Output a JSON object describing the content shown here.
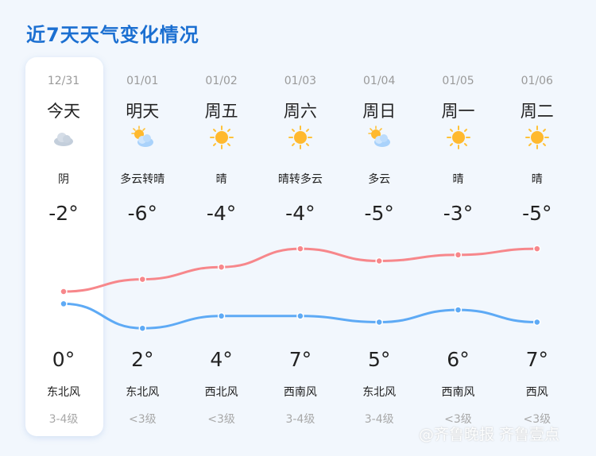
{
  "title": "近7天天气变化情况",
  "colors": {
    "high_line": "#f7878b",
    "low_line": "#5eaaf5",
    "title": "#1b6fd1"
  },
  "days": [
    {
      "date": "12/31",
      "day": "今天",
      "icon": "overcast-icon",
      "cond": "阴",
      "low": "-2°",
      "high": "0°",
      "wind": "东北风",
      "level": "3-4级",
      "low_v": -2,
      "high_v": 0
    },
    {
      "date": "01/01",
      "day": "明天",
      "icon": "partly-cloudy-icon",
      "cond": "多云转晴",
      "low": "-6°",
      "high": "2°",
      "wind": "东北风",
      "level": "<3级",
      "low_v": -6,
      "high_v": 2
    },
    {
      "date": "01/02",
      "day": "周五",
      "icon": "sunny-icon",
      "cond": "晴",
      "low": "-4°",
      "high": "4°",
      "wind": "西北风",
      "level": "<3级",
      "low_v": -4,
      "high_v": 4
    },
    {
      "date": "01/03",
      "day": "周六",
      "icon": "sunny-icon",
      "cond": "晴转多云",
      "low": "-4°",
      "high": "7°",
      "wind": "西南风",
      "level": "3-4级",
      "low_v": -4,
      "high_v": 7
    },
    {
      "date": "01/04",
      "day": "周日",
      "icon": "partly-cloudy-icon",
      "cond": "多云",
      "low": "-5°",
      "high": "5°",
      "wind": "东北风",
      "level": "3-4级",
      "low_v": -5,
      "high_v": 5
    },
    {
      "date": "01/05",
      "day": "周一",
      "icon": "sunny-icon",
      "cond": "晴",
      "low": "-3°",
      "high": "6°",
      "wind": "西南风",
      "level": "<3级",
      "low_v": -3,
      "high_v": 6
    },
    {
      "date": "01/06",
      "day": "周二",
      "icon": "sunny-icon",
      "cond": "晴",
      "low": "-5°",
      "high": "7°",
      "wind": "西风",
      "level": "<3级",
      "low_v": -5,
      "high_v": 7
    }
  ],
  "watermark": "@齐鲁晚报 齐鲁壹点"
}
